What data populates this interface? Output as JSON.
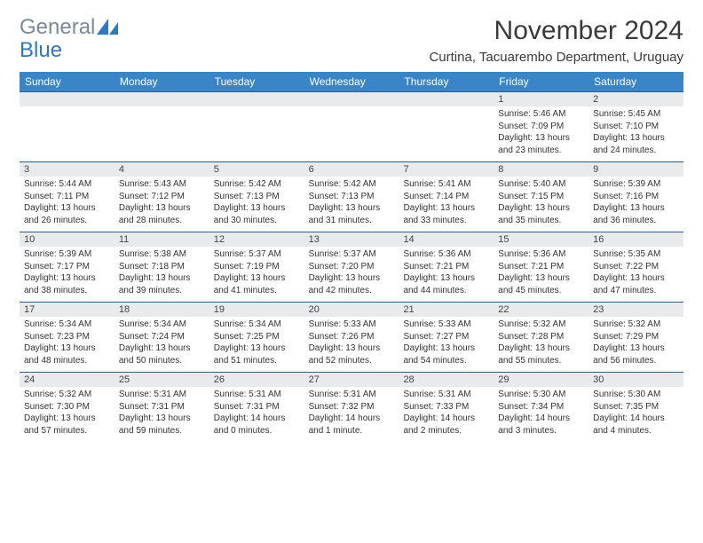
{
  "logo": {
    "text_gray": "General",
    "text_blue": "Blue",
    "icon_color": "#2f79bd"
  },
  "title": "November 2024",
  "location": "Curtina, Tacuarembo Department, Uruguay",
  "colors": {
    "header_bg": "#3a85c7",
    "header_text": "#ffffff",
    "daynum_bg": "#e8eaec",
    "week_border": "#2f5d8a",
    "text": "#333333"
  },
  "weekdays": [
    "Sunday",
    "Monday",
    "Tuesday",
    "Wednesday",
    "Thursday",
    "Friday",
    "Saturday"
  ],
  "weeks": [
    [
      {
        "n": "",
        "sr": "",
        "ss": "",
        "dl": ""
      },
      {
        "n": "",
        "sr": "",
        "ss": "",
        "dl": ""
      },
      {
        "n": "",
        "sr": "",
        "ss": "",
        "dl": ""
      },
      {
        "n": "",
        "sr": "",
        "ss": "",
        "dl": ""
      },
      {
        "n": "",
        "sr": "",
        "ss": "",
        "dl": ""
      },
      {
        "n": "1",
        "sr": "Sunrise: 5:46 AM",
        "ss": "Sunset: 7:09 PM",
        "dl": "Daylight: 13 hours and 23 minutes."
      },
      {
        "n": "2",
        "sr": "Sunrise: 5:45 AM",
        "ss": "Sunset: 7:10 PM",
        "dl": "Daylight: 13 hours and 24 minutes."
      }
    ],
    [
      {
        "n": "3",
        "sr": "Sunrise: 5:44 AM",
        "ss": "Sunset: 7:11 PM",
        "dl": "Daylight: 13 hours and 26 minutes."
      },
      {
        "n": "4",
        "sr": "Sunrise: 5:43 AM",
        "ss": "Sunset: 7:12 PM",
        "dl": "Daylight: 13 hours and 28 minutes."
      },
      {
        "n": "5",
        "sr": "Sunrise: 5:42 AM",
        "ss": "Sunset: 7:13 PM",
        "dl": "Daylight: 13 hours and 30 minutes."
      },
      {
        "n": "6",
        "sr": "Sunrise: 5:42 AM",
        "ss": "Sunset: 7:13 PM",
        "dl": "Daylight: 13 hours and 31 minutes."
      },
      {
        "n": "7",
        "sr": "Sunrise: 5:41 AM",
        "ss": "Sunset: 7:14 PM",
        "dl": "Daylight: 13 hours and 33 minutes."
      },
      {
        "n": "8",
        "sr": "Sunrise: 5:40 AM",
        "ss": "Sunset: 7:15 PM",
        "dl": "Daylight: 13 hours and 35 minutes."
      },
      {
        "n": "9",
        "sr": "Sunrise: 5:39 AM",
        "ss": "Sunset: 7:16 PM",
        "dl": "Daylight: 13 hours and 36 minutes."
      }
    ],
    [
      {
        "n": "10",
        "sr": "Sunrise: 5:39 AM",
        "ss": "Sunset: 7:17 PM",
        "dl": "Daylight: 13 hours and 38 minutes."
      },
      {
        "n": "11",
        "sr": "Sunrise: 5:38 AM",
        "ss": "Sunset: 7:18 PM",
        "dl": "Daylight: 13 hours and 39 minutes."
      },
      {
        "n": "12",
        "sr": "Sunrise: 5:37 AM",
        "ss": "Sunset: 7:19 PM",
        "dl": "Daylight: 13 hours and 41 minutes."
      },
      {
        "n": "13",
        "sr": "Sunrise: 5:37 AM",
        "ss": "Sunset: 7:20 PM",
        "dl": "Daylight: 13 hours and 42 minutes."
      },
      {
        "n": "14",
        "sr": "Sunrise: 5:36 AM",
        "ss": "Sunset: 7:21 PM",
        "dl": "Daylight: 13 hours and 44 minutes."
      },
      {
        "n": "15",
        "sr": "Sunrise: 5:36 AM",
        "ss": "Sunset: 7:21 PM",
        "dl": "Daylight: 13 hours and 45 minutes."
      },
      {
        "n": "16",
        "sr": "Sunrise: 5:35 AM",
        "ss": "Sunset: 7:22 PM",
        "dl": "Daylight: 13 hours and 47 minutes."
      }
    ],
    [
      {
        "n": "17",
        "sr": "Sunrise: 5:34 AM",
        "ss": "Sunset: 7:23 PM",
        "dl": "Daylight: 13 hours and 48 minutes."
      },
      {
        "n": "18",
        "sr": "Sunrise: 5:34 AM",
        "ss": "Sunset: 7:24 PM",
        "dl": "Daylight: 13 hours and 50 minutes."
      },
      {
        "n": "19",
        "sr": "Sunrise: 5:34 AM",
        "ss": "Sunset: 7:25 PM",
        "dl": "Daylight: 13 hours and 51 minutes."
      },
      {
        "n": "20",
        "sr": "Sunrise: 5:33 AM",
        "ss": "Sunset: 7:26 PM",
        "dl": "Daylight: 13 hours and 52 minutes."
      },
      {
        "n": "21",
        "sr": "Sunrise: 5:33 AM",
        "ss": "Sunset: 7:27 PM",
        "dl": "Daylight: 13 hours and 54 minutes."
      },
      {
        "n": "22",
        "sr": "Sunrise: 5:32 AM",
        "ss": "Sunset: 7:28 PM",
        "dl": "Daylight: 13 hours and 55 minutes."
      },
      {
        "n": "23",
        "sr": "Sunrise: 5:32 AM",
        "ss": "Sunset: 7:29 PM",
        "dl": "Daylight: 13 hours and 56 minutes."
      }
    ],
    [
      {
        "n": "24",
        "sr": "Sunrise: 5:32 AM",
        "ss": "Sunset: 7:30 PM",
        "dl": "Daylight: 13 hours and 57 minutes."
      },
      {
        "n": "25",
        "sr": "Sunrise: 5:31 AM",
        "ss": "Sunset: 7:31 PM",
        "dl": "Daylight: 13 hours and 59 minutes."
      },
      {
        "n": "26",
        "sr": "Sunrise: 5:31 AM",
        "ss": "Sunset: 7:31 PM",
        "dl": "Daylight: 14 hours and 0 minutes."
      },
      {
        "n": "27",
        "sr": "Sunrise: 5:31 AM",
        "ss": "Sunset: 7:32 PM",
        "dl": "Daylight: 14 hours and 1 minute."
      },
      {
        "n": "28",
        "sr": "Sunrise: 5:31 AM",
        "ss": "Sunset: 7:33 PM",
        "dl": "Daylight: 14 hours and 2 minutes."
      },
      {
        "n": "29",
        "sr": "Sunrise: 5:30 AM",
        "ss": "Sunset: 7:34 PM",
        "dl": "Daylight: 14 hours and 3 minutes."
      },
      {
        "n": "30",
        "sr": "Sunrise: 5:30 AM",
        "ss": "Sunset: 7:35 PM",
        "dl": "Daylight: 14 hours and 4 minutes."
      }
    ]
  ]
}
